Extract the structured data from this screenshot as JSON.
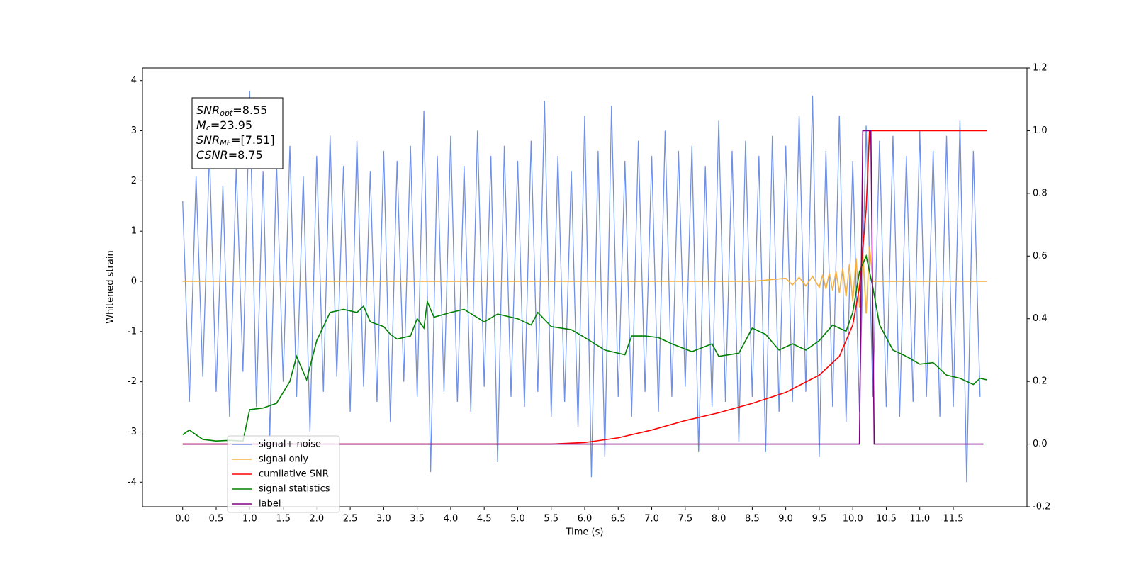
{
  "chart_data": {
    "type": "line",
    "xlabel": "Time (s)",
    "ylabel": "Whitened strain",
    "xlim": [
      -0.6,
      12.6
    ],
    "ylim": [
      -4.49,
      4.25
    ],
    "y2lim": [
      -0.2,
      1.2
    ],
    "xticks": [
      {
        "value": 0,
        "label": "0.0"
      },
      0.5,
      {
        "value": 1,
        "label": "1.0"
      },
      1.5,
      {
        "value": 2,
        "label": "2.0"
      },
      2.5,
      {
        "value": 3,
        "label": "3.0"
      },
      3.5,
      {
        "value": 4,
        "label": "4.0"
      },
      4.5,
      {
        "value": 5,
        "label": "5.0"
      },
      5.5,
      {
        "value": 6,
        "label": "6.0"
      },
      6.5,
      {
        "value": 7,
        "label": "7.0"
      },
      7.5,
      {
        "value": 8,
        "label": "8.0"
      },
      8.5,
      {
        "value": 9,
        "label": "9.0"
      },
      9.5,
      {
        "value": 10,
        "label": "10.0"
      },
      10.5,
      {
        "value": 11,
        "label": "11.0"
      },
      11.5
    ],
    "yticks": [
      -4,
      -3,
      -2,
      -1,
      0,
      1,
      2,
      3,
      4
    ],
    "y2ticks": [
      -0.2,
      {
        "value": 0,
        "label": "0.0"
      },
      0.2,
      0.4,
      0.6,
      0.8,
      {
        "value": 1,
        "label": "1.0"
      },
      1.2
    ],
    "grid": false,
    "legend_loc": "lower left",
    "annotations": [
      {
        "symbol": "SNR",
        "sub": "opt",
        "text": "=8.55"
      },
      {
        "symbol": "M",
        "sub": "c",
        "text": "=23.95"
      },
      {
        "symbol": "SNR",
        "sub": "MF",
        "text": "=[7.51]"
      },
      {
        "symbol": "CSNR",
        "text": "=8.75"
      }
    ],
    "series": [
      {
        "name": "signal+ noise",
        "color": "#7090e6",
        "axis": "y",
        "x": [
          0.0,
          0.1,
          0.2,
          0.3,
          0.4,
          0.5,
          0.6,
          0.7,
          0.8,
          0.9,
          1.0,
          1.1,
          1.2,
          1.3,
          1.4,
          1.5,
          1.6,
          1.7,
          1.8,
          1.9,
          2.0,
          2.1,
          2.2,
          2.3,
          2.4,
          2.5,
          2.6,
          2.7,
          2.8,
          2.9,
          3.0,
          3.1,
          3.2,
          3.3,
          3.4,
          3.5,
          3.6,
          3.7,
          3.8,
          3.9,
          4.0,
          4.1,
          4.2,
          4.3,
          4.4,
          4.5,
          4.6,
          4.7,
          4.8,
          4.9,
          5.0,
          5.1,
          5.2,
          5.3,
          5.4,
          5.5,
          5.6,
          5.7,
          5.8,
          5.9,
          6.0,
          6.1,
          6.2,
          6.3,
          6.4,
          6.5,
          6.6,
          6.7,
          6.8,
          6.9,
          7.0,
          7.1,
          7.2,
          7.3,
          7.4,
          7.5,
          7.6,
          7.7,
          7.8,
          7.9,
          8.0,
          8.1,
          8.2,
          8.3,
          8.4,
          8.5,
          8.6,
          8.7,
          8.8,
          8.9,
          9.0,
          9.1,
          9.2,
          9.3,
          9.4,
          9.5,
          9.6,
          9.7,
          9.8,
          9.9,
          10.0,
          10.1,
          10.2,
          10.3,
          10.4,
          10.5,
          10.6,
          10.7,
          10.8,
          10.9,
          11.0,
          11.1,
          11.2,
          11.3,
          11.4,
          11.5,
          11.6,
          11.7,
          11.8,
          11.9
        ],
        "values": [
          1.6,
          -2.4,
          2.1,
          -1.9,
          2.6,
          -2.2,
          1.9,
          -2.7,
          2.3,
          -1.8,
          3.8,
          -2.5,
          2.2,
          -3.1,
          2.4,
          -2.0,
          2.7,
          -2.3,
          2.1,
          -3.0,
          2.5,
          -2.2,
          2.9,
          -1.9,
          2.3,
          -2.6,
          2.8,
          -2.1,
          2.2,
          -2.4,
          2.6,
          -2.8,
          2.4,
          -2.0,
          2.7,
          -2.3,
          3.4,
          -3.8,
          2.5,
          -2.2,
          2.9,
          -2.4,
          2.3,
          -2.6,
          3.0,
          -2.1,
          2.5,
          -3.6,
          2.7,
          -2.3,
          2.4,
          -2.5,
          2.8,
          -2.2,
          3.6,
          -2.7,
          2.5,
          -2.4,
          2.2,
          -2.9,
          3.3,
          -3.9,
          2.6,
          -3.5,
          3.5,
          -2.3,
          2.4,
          -2.7,
          2.8,
          -2.2,
          2.5,
          -2.6,
          3.0,
          -2.3,
          2.6,
          -2.1,
          2.7,
          -3.4,
          2.3,
          -2.5,
          3.2,
          -2.4,
          2.6,
          -3.2,
          2.8,
          -2.3,
          2.5,
          -3.4,
          2.9,
          -2.6,
          2.7,
          -2.4,
          3.3,
          -2.2,
          3.7,
          -3.5,
          2.6,
          -2.5,
          3.3,
          -2.8,
          2.4,
          -2.6,
          3.1,
          -2.3,
          2.8,
          -2.5,
          2.9,
          -2.7,
          2.5,
          -2.4,
          3.0,
          -2.3,
          2.6,
          -2.7,
          2.9,
          -2.5,
          3.2,
          -4.0,
          2.6,
          -2.3
        ]
      },
      {
        "name": "signal only",
        "color": "#f5b041",
        "axis": "y",
        "x": [
          0.0,
          8.5,
          9.0,
          9.1,
          9.2,
          9.3,
          9.4,
          9.5,
          9.55,
          9.6,
          9.65,
          9.7,
          9.75,
          9.8,
          9.85,
          9.9,
          9.95,
          10.0,
          10.05,
          10.1,
          10.15,
          10.2,
          10.25,
          10.3,
          12.0
        ],
        "values": [
          0,
          0,
          0.06,
          -0.07,
          0.08,
          -0.09,
          0.1,
          -0.12,
          0.13,
          -0.15,
          0.16,
          -0.18,
          0.2,
          -0.23,
          0.26,
          -0.3,
          0.34,
          -0.4,
          0.46,
          -0.52,
          0.58,
          -0.64,
          0.7,
          0,
          0
        ]
      },
      {
        "name": "cumilative SNR",
        "color": "#ff0000",
        "axis": "y2",
        "x": [
          0.0,
          5.5,
          6.0,
          6.5,
          7.0,
          7.5,
          8.0,
          8.5,
          9.0,
          9.5,
          9.8,
          10.0,
          10.1,
          10.2,
          10.25,
          10.3,
          12.0
        ],
        "values": [
          0,
          0,
          0.005,
          0.02,
          0.045,
          0.075,
          0.1,
          0.13,
          0.165,
          0.22,
          0.28,
          0.38,
          0.5,
          0.75,
          1.0,
          1.0,
          1.0
        ]
      },
      {
        "name": "signal statistics",
        "color": "#008000",
        "axis": "y2",
        "x": [
          0.0,
          0.1,
          0.3,
          0.5,
          0.7,
          0.9,
          1.0,
          1.2,
          1.4,
          1.6,
          1.7,
          1.85,
          2.0,
          2.2,
          2.4,
          2.6,
          2.7,
          2.8,
          3.0,
          3.1,
          3.2,
          3.4,
          3.5,
          3.6,
          3.65,
          3.75,
          4.0,
          4.2,
          4.5,
          4.7,
          5.0,
          5.2,
          5.3,
          5.5,
          5.8,
          6.0,
          6.3,
          6.6,
          6.7,
          6.9,
          7.1,
          7.3,
          7.6,
          7.9,
          8.0,
          8.3,
          8.5,
          8.7,
          8.9,
          9.1,
          9.3,
          9.5,
          9.7,
          9.9,
          10.0,
          10.1,
          10.2,
          10.3,
          10.4,
          10.6,
          10.8,
          11.0,
          11.2,
          11.4,
          11.6,
          11.8,
          11.9,
          12.0
        ],
        "values": [
          0.03,
          0.045,
          0.015,
          0.01,
          0.012,
          0.01,
          0.11,
          0.115,
          0.13,
          0.2,
          0.28,
          0.205,
          0.33,
          0.42,
          0.43,
          0.42,
          0.44,
          0.39,
          0.375,
          0.35,
          0.335,
          0.345,
          0.4,
          0.37,
          0.455,
          0.405,
          0.42,
          0.43,
          0.39,
          0.415,
          0.4,
          0.38,
          0.42,
          0.375,
          0.365,
          0.34,
          0.3,
          0.285,
          0.345,
          0.345,
          0.34,
          0.32,
          0.295,
          0.32,
          0.28,
          0.29,
          0.37,
          0.35,
          0.3,
          0.32,
          0.3,
          0.33,
          0.38,
          0.36,
          0.42,
          0.55,
          0.6,
          0.5,
          0.38,
          0.3,
          0.28,
          0.255,
          0.26,
          0.22,
          0.21,
          0.19,
          0.21,
          0.205
        ]
      },
      {
        "name": "label",
        "color": "#800080",
        "axis": "y2",
        "x": [
          0.0,
          10.1,
          10.15,
          10.27,
          10.32,
          11.95
        ],
        "values": [
          0,
          0,
          1,
          1,
          0,
          0
        ]
      }
    ]
  }
}
